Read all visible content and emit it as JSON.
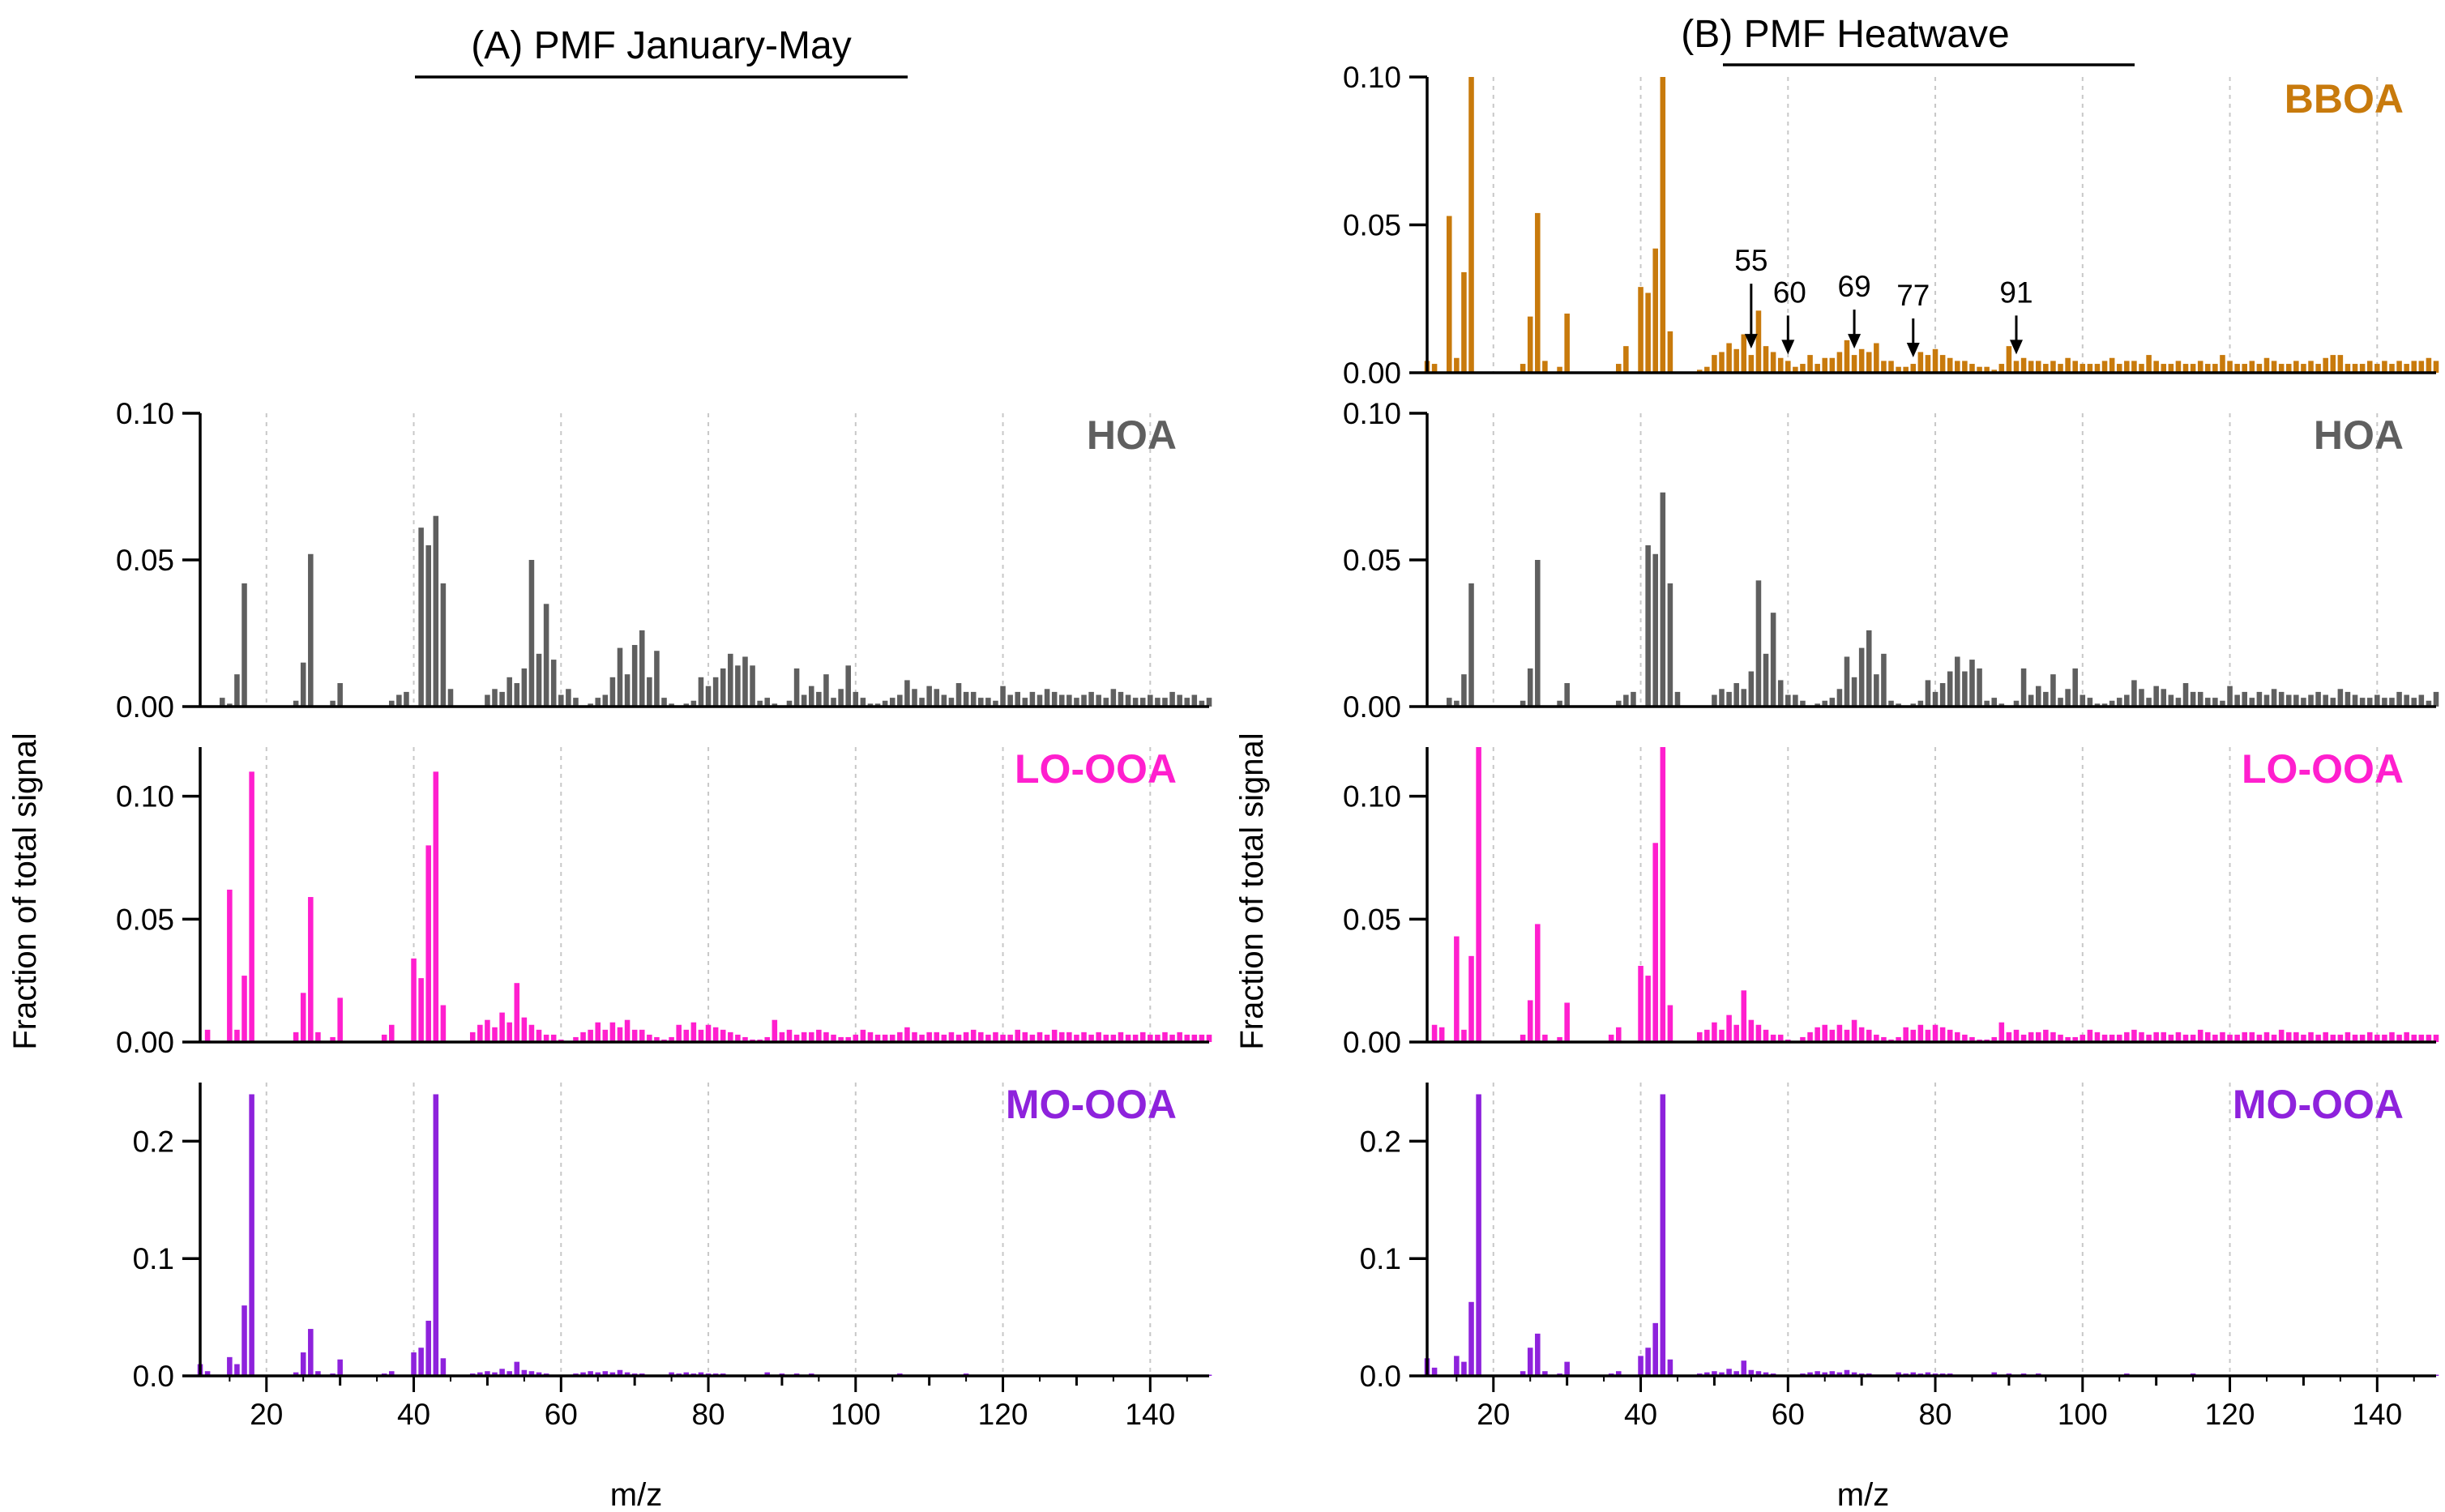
{
  "titles": {
    "a": "(A)  PMF January-May",
    "b": "(B) PMF Heatwave"
  },
  "axes": {
    "xlabel": "m/z",
    "ylabel": "Fraction of total signal",
    "xlim": [
      11,
      148
    ],
    "xticks": [
      20,
      40,
      60,
      80,
      100,
      120,
      140
    ]
  },
  "colors": {
    "BBOA": "#c87a0c",
    "HOA": "#5f5f5f",
    "LO-OOA": "#ff1fce",
    "MO-OOA": "#8e22dc",
    "grid": "#c8c8c8"
  },
  "annotations": [
    {
      "label": "55",
      "mz": 55
    },
    {
      "label": "60",
      "mz": 60
    },
    {
      "label": "69",
      "mz": 69
    },
    {
      "label": "77",
      "mz": 77
    },
    {
      "label": "91",
      "mz": 91
    }
  ],
  "chart_data": [
    {
      "panel": "A",
      "type": "bar",
      "factor": "HOA",
      "title": "(A)  PMF January-May",
      "xlabel": "m/z",
      "ylabel": "Fraction of total signal",
      "ylim": [
        0,
        0.1
      ],
      "yticks": [
        0.0,
        0.05,
        0.1
      ],
      "ytick_labels": [
        "0.00",
        "0.05",
        "0.10"
      ],
      "x_start": 12,
      "values": [
        0,
        0,
        0.003,
        0.001,
        0.011,
        0.042,
        0,
        0,
        0,
        0,
        0,
        0,
        0.002,
        0.015,
        0.052,
        0,
        0,
        0.002,
        0.008,
        0,
        0,
        0,
        0,
        0,
        0,
        0.002,
        0.004,
        0.005,
        0,
        0.061,
        0.055,
        0.065,
        0.042,
        0.006,
        0,
        0,
        0,
        0,
        0.004,
        0.006,
        0.005,
        0.01,
        0.008,
        0.013,
        0.05,
        0.018,
        0.035,
        0.016,
        0.004,
        0.006,
        0.003,
        0,
        0.001,
        0.003,
        0.004,
        0.01,
        0.02,
        0.011,
        0.021,
        0.026,
        0.01,
        0.019,
        0.003,
        0.001,
        0,
        0.001,
        0.002,
        0.01,
        0.007,
        0.01,
        0.013,
        0.018,
        0.014,
        0.017,
        0.014,
        0.002,
        0.003,
        0.001,
        0,
        0.002,
        0.013,
        0.004,
        0.007,
        0.005,
        0.011,
        0.003,
        0.006,
        0.014,
        0.005,
        0.003,
        0.001,
        0.001,
        0.002,
        0.003,
        0.004,
        0.009,
        0.006,
        0.003,
        0.007,
        0.006,
        0.004,
        0.003,
        0.008,
        0.005,
        0.005,
        0.003,
        0.003,
        0.002,
        0.007,
        0.004,
        0.005,
        0.003,
        0.005,
        0.004,
        0.006,
        0.005,
        0.004,
        0.004,
        0.003,
        0.004,
        0.005,
        0.004,
        0.003,
        0.006,
        0.005,
        0.004,
        0.003,
        0.003,
        0.004,
        0.003,
        0.003,
        0.005,
        0.004,
        0.003,
        0.004,
        0.002,
        0.003
      ]
    },
    {
      "panel": "A",
      "type": "bar",
      "factor": "LO-OOA",
      "ylim": [
        0,
        0.12
      ],
      "yticks": [
        0.0,
        0.05,
        0.1
      ],
      "ytick_labels": [
        "0.00",
        "0.05",
        "0.10"
      ],
      "x_start": 12,
      "values": [
        0.005,
        0,
        0,
        0.062,
        0.005,
        0.027,
        0.11,
        0,
        0,
        0,
        0,
        0,
        0.004,
        0.02,
        0.059,
        0.004,
        0,
        0.002,
        0.018,
        0,
        0,
        0,
        0,
        0,
        0.003,
        0.007,
        0,
        0,
        0.034,
        0.026,
        0.08,
        0.11,
        0.015,
        0,
        0,
        0,
        0.004,
        0.007,
        0.009,
        0.006,
        0.012,
        0.008,
        0.024,
        0.01,
        0.007,
        0.005,
        0.003,
        0.003,
        0.001,
        0,
        0.002,
        0.004,
        0.005,
        0.008,
        0.005,
        0.008,
        0.006,
        0.009,
        0.005,
        0.005,
        0.003,
        0.002,
        0.001,
        0.002,
        0.007,
        0.005,
        0.008,
        0.005,
        0.007,
        0.006,
        0.005,
        0.004,
        0.003,
        0.002,
        0.001,
        0.001,
        0.002,
        0.009,
        0.004,
        0.005,
        0.003,
        0.004,
        0.004,
        0.005,
        0.004,
        0.003,
        0.002,
        0.002,
        0.003,
        0.005,
        0.004,
        0.003,
        0.003,
        0.003,
        0.004,
        0.006,
        0.004,
        0.003,
        0.004,
        0.004,
        0.003,
        0.004,
        0.003,
        0.004,
        0.005,
        0.004,
        0.003,
        0.004,
        0.003,
        0.003,
        0.005,
        0.004,
        0.003,
        0.004,
        0.003,
        0.005,
        0.004,
        0.004,
        0.003,
        0.004,
        0.003,
        0.004,
        0.003,
        0.003,
        0.004,
        0.003,
        0.003,
        0.004,
        0.003,
        0.003,
        0.004,
        0.003,
        0.004,
        0.003,
        0.003,
        0.003,
        0.003
      ]
    },
    {
      "panel": "A",
      "type": "bar",
      "factor": "MO-OOA",
      "ylim": [
        0,
        0.25
      ],
      "yticks": [
        0.0,
        0.1,
        0.2
      ],
      "ytick_labels": [
        "0.0",
        "0.1",
        "0.2"
      ],
      "x_start": 11,
      "values": [
        0.01,
        0.004,
        0,
        0,
        0.016,
        0.01,
        0.06,
        0.24,
        0,
        0,
        0,
        0,
        0,
        0.003,
        0.02,
        0.04,
        0.004,
        0,
        0.002,
        0.014,
        0,
        0,
        0,
        0,
        0,
        0.002,
        0.004,
        0,
        0,
        0.02,
        0.024,
        0.047,
        0.24,
        0.015,
        0,
        0,
        0,
        0.002,
        0.003,
        0.004,
        0.003,
        0.006,
        0.004,
        0.012,
        0.005,
        0.004,
        0.003,
        0.002,
        0.001,
        0,
        0.001,
        0.002,
        0.003,
        0.004,
        0.003,
        0.004,
        0.003,
        0.005,
        0.003,
        0.002,
        0.002,
        0.001,
        0.001,
        0.001,
        0.003,
        0.002,
        0.003,
        0.002,
        0.003,
        0.002,
        0.002,
        0.002,
        0.001,
        0.001,
        0.001,
        0.001,
        0.001,
        0.003,
        0.001,
        0.002,
        0.001,
        0.002,
        0.001,
        0.002,
        0.001,
        0.001,
        0.001,
        0.001,
        0.001,
        0.001,
        0.001,
        0.001,
        0.001,
        0.001,
        0.001,
        0.002,
        0.001,
        0.001,
        0.001,
        0.001,
        0.001,
        0.001,
        0.001,
        0.001,
        0.002,
        0.001,
        0.001,
        0.001,
        0.001,
        0.001,
        0.001,
        0.001,
        0.001,
        0.001,
        0.001,
        0.001,
        0.001,
        0.001,
        0.001,
        0.001,
        0.001,
        0.001,
        0.001,
        0.001,
        0.001,
        0.001,
        0.001,
        0.001,
        0.001,
        0.001,
        0.001,
        0.001,
        0.001,
        0.001,
        0.001,
        0.001,
        0.001,
        0.001
      ]
    },
    {
      "panel": "B",
      "type": "bar",
      "factor": "BBOA",
      "title": "(B) PMF Heatwave",
      "ylim": [
        0,
        0.1
      ],
      "yticks": [
        0.0,
        0.05,
        0.1
      ],
      "ytick_labels": [
        "0.00",
        "0.05",
        "0.10"
      ],
      "x_start": 11,
      "values": [
        0.004,
        0.003,
        0,
        0.053,
        0.005,
        0.034,
        0.1,
        0,
        0,
        0,
        0,
        0,
        0,
        0.003,
        0.019,
        0.054,
        0.004,
        0,
        0.002,
        0.02,
        0,
        0,
        0,
        0,
        0,
        0,
        0.003,
        0.009,
        0,
        0.029,
        0.027,
        0.042,
        0.1,
        0.014,
        0,
        0,
        0,
        0.001,
        0.002,
        0.006,
        0.007,
        0.01,
        0.008,
        0.013,
        0.006,
        0.021,
        0.009,
        0.007,
        0.005,
        0.004,
        0.002,
        0.003,
        0.006,
        0.003,
        0.005,
        0.005,
        0.007,
        0.011,
        0.006,
        0.008,
        0.007,
        0.01,
        0.004,
        0.004,
        0.002,
        0.002,
        0.003,
        0.007,
        0.006,
        0.008,
        0.006,
        0.005,
        0.004,
        0.004,
        0.003,
        0.002,
        0.002,
        0.001,
        0.003,
        0.009,
        0.004,
        0.005,
        0.004,
        0.004,
        0.003,
        0.004,
        0.003,
        0.005,
        0.004,
        0.003,
        0.003,
        0.003,
        0.004,
        0.005,
        0.003,
        0.004,
        0.004,
        0.003,
        0.006,
        0.004,
        0.003,
        0.003,
        0.004,
        0.003,
        0.003,
        0.004,
        0.003,
        0.003,
        0.006,
        0.004,
        0.003,
        0.003,
        0.004,
        0.003,
        0.005,
        0.004,
        0.003,
        0.003,
        0.004,
        0.003,
        0.004,
        0.003,
        0.005,
        0.006,
        0.006,
        0.003,
        0.003,
        0.003,
        0.004,
        0.003,
        0.004,
        0.003,
        0.004,
        0.003,
        0.004,
        0.004,
        0.005,
        0.004,
        0.003
      ]
    },
    {
      "panel": "B",
      "type": "bar",
      "factor": "HOA",
      "ylim": [
        0,
        0.1
      ],
      "yticks": [
        0.0,
        0.05,
        0.1
      ],
      "ytick_labels": [
        "0.00",
        "0.05",
        "0.10"
      ],
      "x_start": 12,
      "values": [
        0,
        0,
        0.003,
        0.002,
        0.011,
        0.042,
        0,
        0,
        0,
        0,
        0,
        0,
        0.002,
        0.013,
        0.05,
        0,
        0,
        0.002,
        0.008,
        0,
        0,
        0,
        0,
        0,
        0,
        0.002,
        0.004,
        0.005,
        0,
        0.055,
        0.052,
        0.073,
        0.042,
        0.005,
        0,
        0,
        0,
        0,
        0.004,
        0.006,
        0.005,
        0.008,
        0.006,
        0.012,
        0.043,
        0.018,
        0.032,
        0.009,
        0.004,
        0.004,
        0.002,
        0,
        0.001,
        0.002,
        0.003,
        0.006,
        0.017,
        0.01,
        0.02,
        0.026,
        0.011,
        0.018,
        0.002,
        0.001,
        0,
        0.001,
        0.002,
        0.009,
        0.005,
        0.008,
        0.012,
        0.017,
        0.012,
        0.016,
        0.013,
        0.002,
        0.003,
        0.001,
        0,
        0.002,
        0.013,
        0.004,
        0.007,
        0.005,
        0.011,
        0.003,
        0.006,
        0.013,
        0.004,
        0.003,
        0.001,
        0.001,
        0.002,
        0.003,
        0.004,
        0.009,
        0.006,
        0.003,
        0.007,
        0.006,
        0.004,
        0.003,
        0.008,
        0.005,
        0.005,
        0.003,
        0.003,
        0.002,
        0.007,
        0.004,
        0.005,
        0.003,
        0.005,
        0.004,
        0.006,
        0.005,
        0.004,
        0.004,
        0.003,
        0.004,
        0.005,
        0.004,
        0.003,
        0.006,
        0.005,
        0.004,
        0.003,
        0.003,
        0.004,
        0.003,
        0.003,
        0.005,
        0.004,
        0.003,
        0.004,
        0.002,
        0.005
      ]
    },
    {
      "panel": "B",
      "type": "bar",
      "factor": "LO-OOA",
      "ylim": [
        0,
        0.12
      ],
      "yticks": [
        0.0,
        0.05,
        0.1
      ],
      "ytick_labels": [
        "0.00",
        "0.05",
        "0.10"
      ],
      "x_start": 12,
      "values": [
        0.007,
        0.006,
        0,
        0.043,
        0.005,
        0.035,
        0.12,
        0,
        0,
        0,
        0,
        0,
        0.003,
        0.017,
        0.048,
        0.003,
        0,
        0.002,
        0.016,
        0,
        0,
        0,
        0,
        0,
        0.003,
        0.006,
        0,
        0,
        0.031,
        0.027,
        0.081,
        0.12,
        0.015,
        0,
        0,
        0,
        0.004,
        0.005,
        0.008,
        0.005,
        0.011,
        0.007,
        0.021,
        0.009,
        0.007,
        0.005,
        0.003,
        0.003,
        0.001,
        0,
        0.002,
        0.004,
        0.006,
        0.007,
        0.005,
        0.007,
        0.005,
        0.009,
        0.006,
        0.005,
        0.003,
        0.002,
        0.001,
        0.002,
        0.006,
        0.005,
        0.007,
        0.005,
        0.007,
        0.006,
        0.005,
        0.004,
        0.003,
        0.002,
        0.001,
        0.001,
        0.002,
        0.008,
        0.004,
        0.005,
        0.003,
        0.004,
        0.004,
        0.005,
        0.004,
        0.003,
        0.002,
        0.002,
        0.003,
        0.005,
        0.004,
        0.003,
        0.003,
        0.003,
        0.004,
        0.005,
        0.004,
        0.003,
        0.004,
        0.004,
        0.003,
        0.004,
        0.003,
        0.003,
        0.005,
        0.004,
        0.003,
        0.004,
        0.003,
        0.003,
        0.004,
        0.004,
        0.003,
        0.004,
        0.003,
        0.005,
        0.004,
        0.004,
        0.003,
        0.004,
        0.003,
        0.004,
        0.003,
        0.003,
        0.004,
        0.003,
        0.003,
        0.004,
        0.003,
        0.003,
        0.004,
        0.003,
        0.004,
        0.003,
        0.003,
        0.003,
        0.003
      ]
    },
    {
      "panel": "B",
      "type": "bar",
      "factor": "MO-OOA",
      "ylim": [
        0,
        0.25
      ],
      "yticks": [
        0.0,
        0.1,
        0.2
      ],
      "ytick_labels": [
        "0.0",
        "0.1",
        "0.2"
      ],
      "x_start": 11,
      "values": [
        0.015,
        0.007,
        0,
        0,
        0.017,
        0.012,
        0.063,
        0.24,
        0,
        0,
        0,
        0,
        0,
        0.004,
        0.024,
        0.036,
        0.004,
        0,
        0.002,
        0.012,
        0,
        0,
        0,
        0,
        0,
        0.002,
        0.004,
        0,
        0,
        0.017,
        0.024,
        0.045,
        0.24,
        0.014,
        0,
        0,
        0,
        0.002,
        0.003,
        0.004,
        0.003,
        0.006,
        0.004,
        0.013,
        0.005,
        0.004,
        0.003,
        0.002,
        0.001,
        0,
        0.001,
        0.002,
        0.003,
        0.004,
        0.003,
        0.004,
        0.003,
        0.005,
        0.003,
        0.002,
        0.002,
        0.001,
        0.001,
        0.001,
        0.003,
        0.002,
        0.003,
        0.002,
        0.003,
        0.002,
        0.002,
        0.002,
        0.001,
        0.001,
        0.001,
        0.001,
        0.001,
        0.003,
        0.001,
        0.002,
        0.001,
        0.002,
        0.001,
        0.002,
        0.001,
        0.001,
        0.001,
        0.001,
        0.001,
        0.001,
        0.001,
        0.001,
        0.001,
        0.001,
        0.001,
        0.002,
        0.001,
        0.001,
        0.001,
        0.001,
        0.001,
        0.001,
        0.001,
        0.001,
        0.002,
        0.001,
        0.001,
        0.001,
        0.001,
        0.001,
        0.001,
        0.001,
        0.001,
        0.001,
        0.001,
        0.001,
        0.001,
        0.001,
        0.001,
        0.001,
        0.001,
        0.001,
        0.001,
        0.001,
        0.001,
        0.001,
        0.001,
        0.001,
        0.001,
        0.001,
        0.001,
        0.001,
        0.001,
        0.001,
        0.001,
        0.001,
        0.001,
        0.001
      ]
    }
  ]
}
